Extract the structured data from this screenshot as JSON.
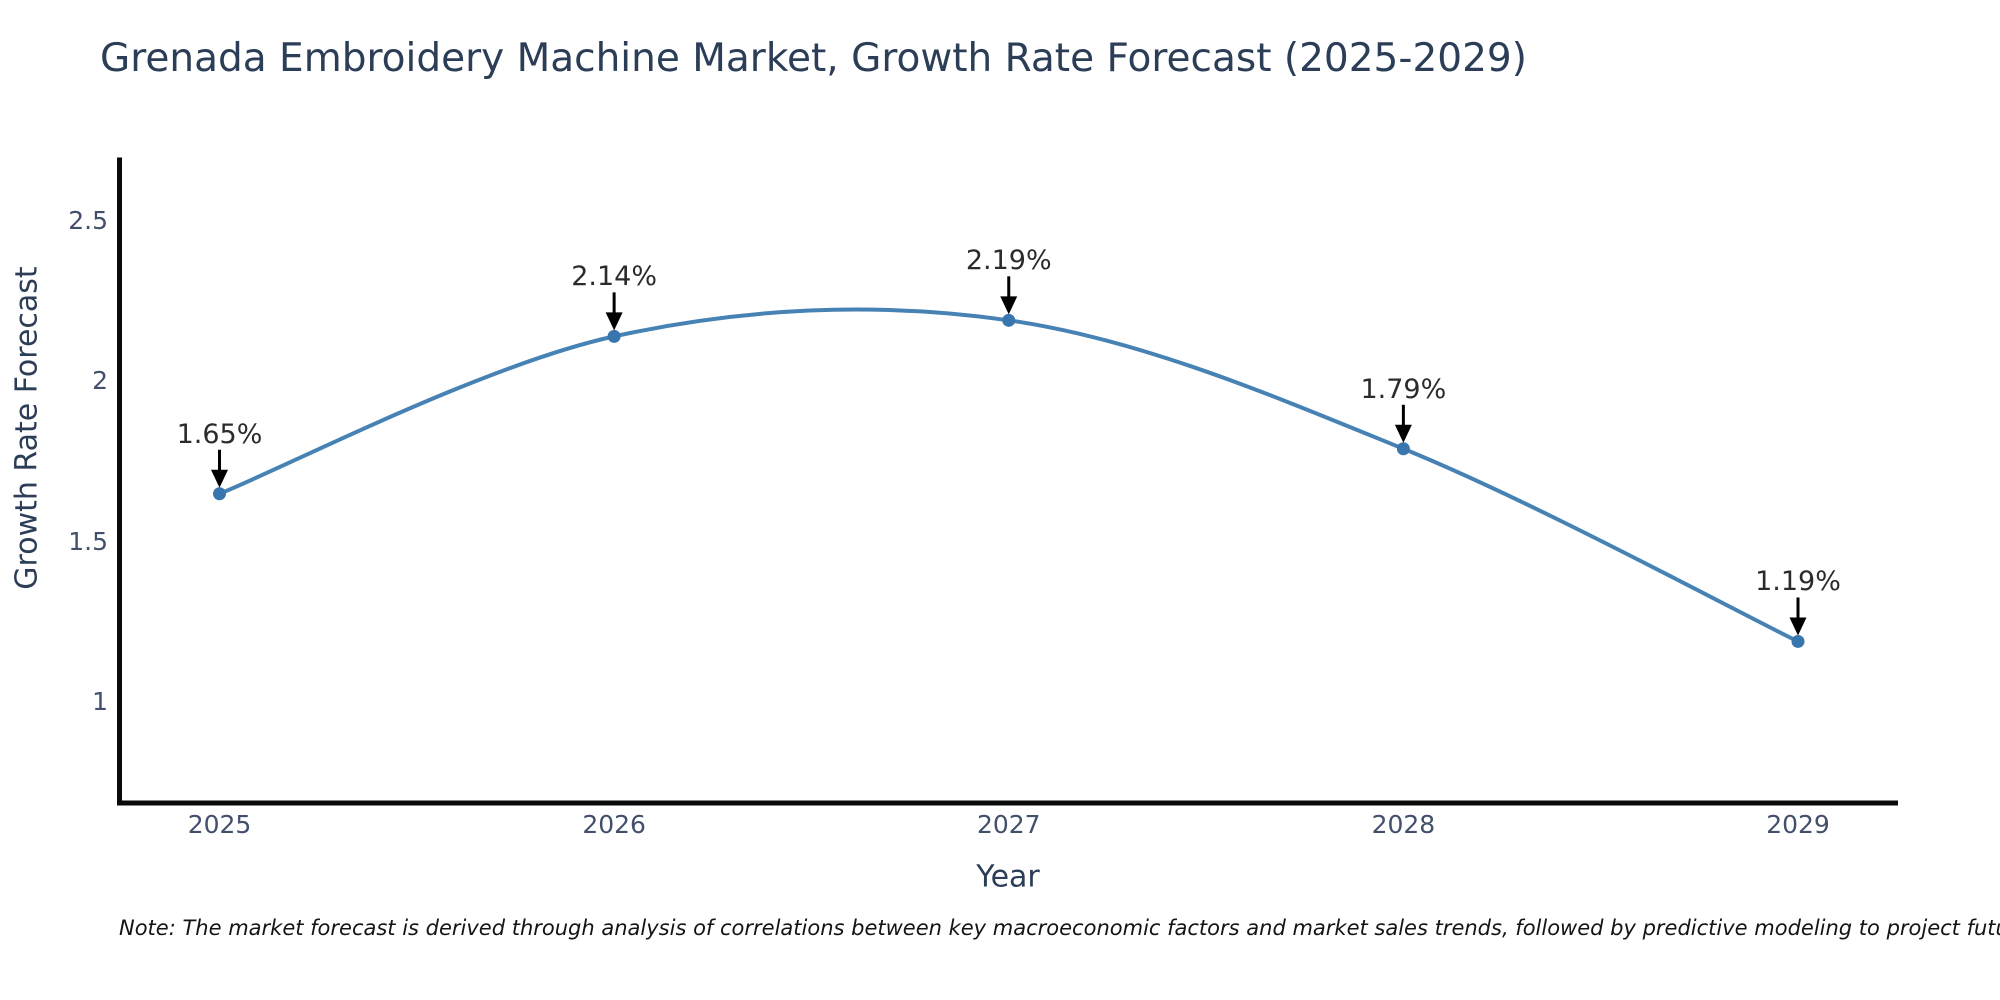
{
  "title": "Grenada Embroidery Machine Market, Growth Rate Forecast (2025-2029)",
  "note": "Note: The market forecast is derived through analysis of correlations between key macroeconomic factors and market sales trends, followed by predictive modeling to project future sales",
  "chart_data": {
    "type": "line",
    "title": "Grenada Embroidery Machine Market, Growth Rate Forecast (2025-2029)",
    "xlabel": "Year",
    "ylabel": "Growth Rate Forecast",
    "categories": [
      "2025",
      "2026",
      "2027",
      "2028",
      "2029"
    ],
    "values": [
      1.65,
      2.14,
      2.19,
      1.79,
      1.19
    ],
    "point_labels": [
      "1.65%",
      "2.14%",
      "2.19%",
      "1.79%",
      "1.19%"
    ],
    "yticks": [
      2.5,
      2,
      1.5,
      1
    ],
    "ytick_labels": [
      "2.5",
      "2",
      "1.5",
      "1"
    ],
    "ylim": [
      0.687,
      2.697
    ],
    "line_shape": "spline",
    "grid": false,
    "legend_position": "none",
    "colors": {
      "line": "#4682b4",
      "marker": "#3a76ae",
      "annotation_arrow": "#000000",
      "axis_line": "#0a0a0a"
    }
  }
}
